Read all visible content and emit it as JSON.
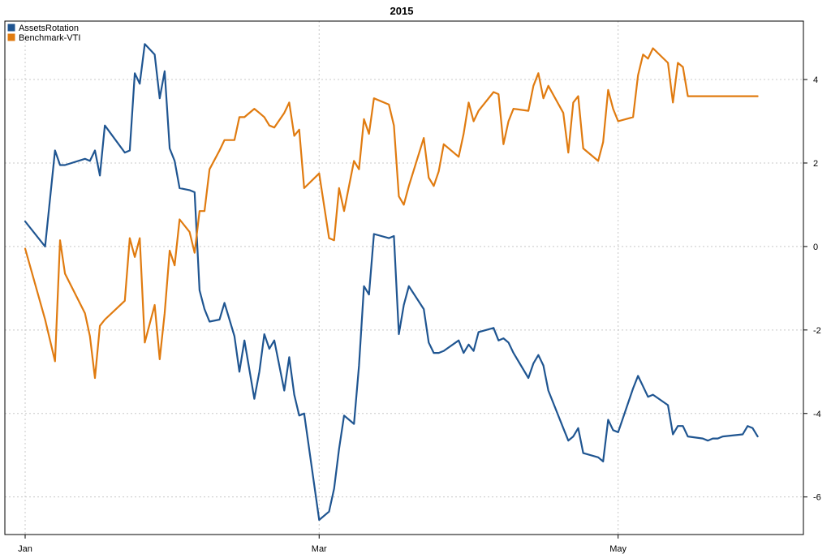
{
  "chart_data": {
    "type": "line",
    "title": "2015",
    "xlabel": "",
    "ylabel": "",
    "x_tick_labels": [
      "Jan",
      "Mar",
      "May"
    ],
    "x_tick_dates": [
      "2015-01-02",
      "2015-03-02",
      "2015-05-01"
    ],
    "xlim": [
      "2015-01-02",
      "2015-06-01"
    ],
    "y_ticks": [
      -6,
      -4,
      -2,
      0,
      2,
      4
    ],
    "ylim": [
      -6.9,
      5.4
    ],
    "y_axis_side": "right",
    "grid": true,
    "legend_position": "top-left",
    "x": [
      "2015-01-02",
      "2015-01-06",
      "2015-01-08",
      "2015-01-09",
      "2015-01-10",
      "2015-01-14",
      "2015-01-15",
      "2015-01-16",
      "2015-01-17",
      "2015-01-18",
      "2015-01-22",
      "2015-01-23",
      "2015-01-24",
      "2015-01-25",
      "2015-01-26",
      "2015-01-28",
      "2015-01-29",
      "2015-01-30",
      "2015-01-31",
      "2015-02-01",
      "2015-02-02",
      "2015-02-04",
      "2015-02-05",
      "2015-02-06",
      "2015-02-07",
      "2015-02-08",
      "2015-02-10",
      "2015-02-11",
      "2015-02-13",
      "2015-02-14",
      "2015-02-15",
      "2015-02-17",
      "2015-02-18",
      "2015-02-19",
      "2015-02-20",
      "2015-02-21",
      "2015-02-23",
      "2015-02-24",
      "2015-02-25",
      "2015-02-26",
      "2015-02-27",
      "2015-03-02",
      "2015-03-04",
      "2015-03-05",
      "2015-03-06",
      "2015-03-07",
      "2015-03-09",
      "2015-03-10",
      "2015-03-11",
      "2015-03-12",
      "2015-03-13",
      "2015-03-16",
      "2015-03-17",
      "2015-03-18",
      "2015-03-19",
      "2015-03-20",
      "2015-03-23",
      "2015-03-24",
      "2015-03-25",
      "2015-03-26",
      "2015-03-27",
      "2015-03-30",
      "2015-03-31",
      "2015-04-01",
      "2015-04-02",
      "2015-04-03",
      "2015-04-06",
      "2015-04-07",
      "2015-04-08",
      "2015-04-09",
      "2015-04-10",
      "2015-04-13",
      "2015-04-14",
      "2015-04-15",
      "2015-04-16",
      "2015-04-17",
      "2015-04-20",
      "2015-04-21",
      "2015-04-22",
      "2015-04-23",
      "2015-04-24",
      "2015-04-27",
      "2015-04-28",
      "2015-04-29",
      "2015-04-30",
      "2015-05-01",
      "2015-05-04",
      "2015-05-05",
      "2015-05-06",
      "2015-05-07",
      "2015-05-08",
      "2015-05-11",
      "2015-05-12",
      "2015-05-13",
      "2015-05-14",
      "2015-05-15",
      "2015-05-18",
      "2015-05-19",
      "2015-05-20",
      "2015-05-21",
      "2015-05-22",
      "2015-05-26",
      "2015-05-27",
      "2015-05-28",
      "2015-05-29"
    ],
    "series": [
      {
        "name": "AssetsRotation",
        "color": "#1f5591",
        "values": [
          0.6,
          0.0,
          2.3,
          1.95,
          1.95,
          2.1,
          2.05,
          2.3,
          1.7,
          2.9,
          2.25,
          2.3,
          4.15,
          3.9,
          4.85,
          4.6,
          3.55,
          4.2,
          2.35,
          2.05,
          1.4,
          1.35,
          1.3,
          -1.05,
          -1.5,
          -1.8,
          -1.75,
          -1.35,
          -2.15,
          -3.0,
          -2.25,
          -3.65,
          -3.0,
          -2.1,
          -2.45,
          -2.25,
          -3.45,
          -2.65,
          -3.55,
          -4.05,
          -4.0,
          -6.55,
          -6.35,
          -5.8,
          -4.85,
          -4.05,
          -4.25,
          -2.85,
          -0.95,
          -1.15,
          0.3,
          0.2,
          0.25,
          -2.1,
          -1.4,
          -0.95,
          -1.5,
          -2.3,
          -2.55,
          -2.55,
          -2.5,
          -2.25,
          -2.55,
          -2.35,
          -2.5,
          -2.05,
          -1.95,
          -2.25,
          -2.2,
          -2.3,
          -2.55,
          -3.15,
          -2.8,
          -2.6,
          -2.85,
          -3.45,
          -4.35,
          -4.65,
          -4.55,
          -4.35,
          -4.95,
          -5.05,
          -5.15,
          -4.15,
          -4.4,
          -4.45,
          -3.4,
          -3.1,
          -3.35,
          -3.6,
          -3.55,
          -3.8,
          -4.5,
          -4.3,
          -4.3,
          -4.55,
          -4.6,
          -4.65,
          -4.6,
          -4.6,
          -4.55,
          -4.5,
          -4.3,
          -4.35,
          -4.55
        ]
      },
      {
        "name": "Benchmark-VTI",
        "color": "#e07b10",
        "values": [
          -0.05,
          -1.75,
          -2.75,
          0.15,
          -0.65,
          -1.6,
          -2.15,
          -3.15,
          -1.9,
          -1.75,
          -1.3,
          0.2,
          -0.25,
          0.2,
          -2.3,
          -1.4,
          -2.7,
          -1.6,
          -0.1,
          -0.45,
          0.65,
          0.35,
          -0.15,
          0.85,
          0.85,
          1.85,
          2.3,
          2.55,
          2.55,
          3.1,
          3.1,
          3.3,
          3.2,
          3.1,
          2.9,
          2.85,
          3.2,
          3.45,
          2.65,
          2.8,
          1.4,
          1.75,
          0.2,
          0.15,
          1.4,
          0.85,
          2.05,
          1.85,
          3.05,
          2.7,
          3.55,
          3.4,
          2.9,
          1.2,
          1.0,
          1.45,
          2.6,
          1.65,
          1.45,
          1.8,
          2.45,
          2.15,
          2.7,
          3.45,
          3.0,
          3.25,
          3.7,
          3.65,
          2.45,
          3.0,
          3.3,
          3.25,
          3.85,
          4.15,
          3.55,
          3.85,
          3.2,
          2.25,
          3.45,
          3.6,
          2.35,
          2.05,
          2.5,
          3.75,
          3.3,
          3.0,
          3.1,
          4.1,
          4.6,
          4.5,
          4.75,
          4.4,
          3.45,
          4.4,
          4.3,
          3.6,
          3.6,
          3.6,
          3.6,
          3.6,
          3.6,
          3.6,
          3.6,
          3.6,
          3.6
        ]
      }
    ]
  }
}
